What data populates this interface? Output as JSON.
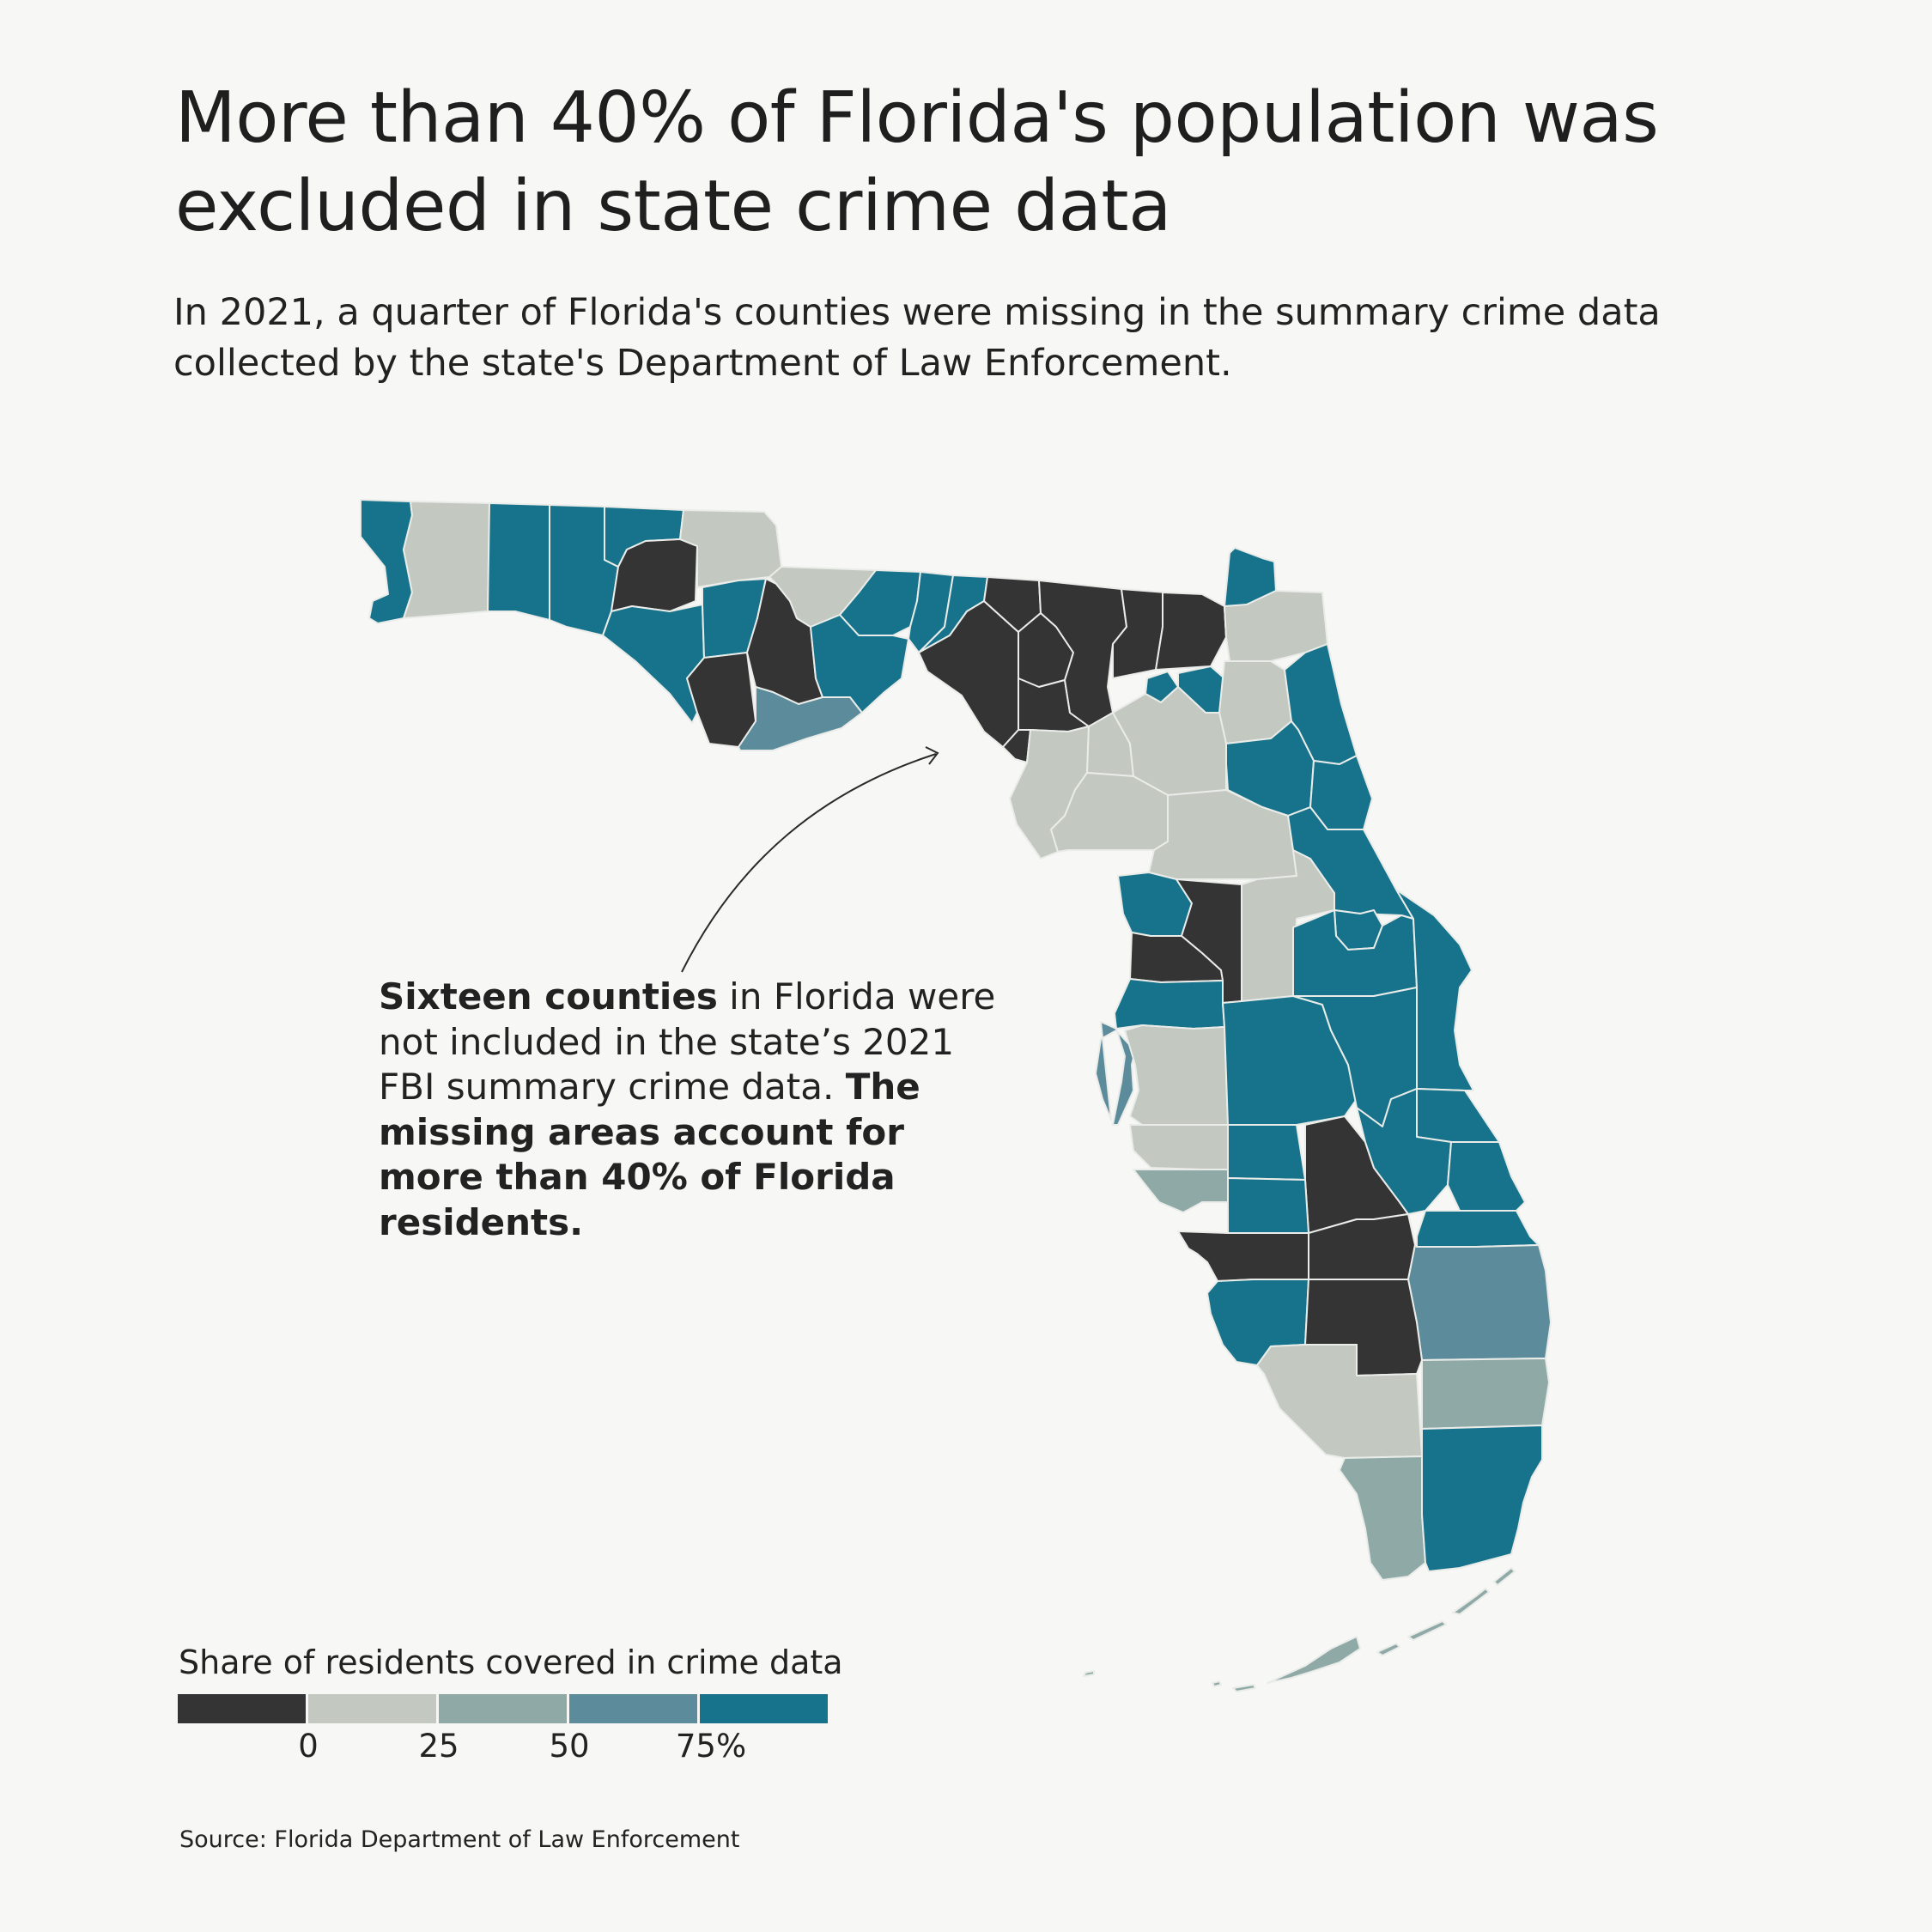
{
  "title": "More than 40% of Florida's population was excluded in state crime data",
  "subtitle": "In 2021, a quarter of Florida's counties were missing in the summary crime data collected by the state's Department of Law Enforcement.",
  "annotation": {
    "bold_lead": "Sixteen counties",
    "text_middle": " in Florida were not included in the state’s 2021 FBI summary crime data. ",
    "bold_end": "The missing areas account for more than 40% of Florida residents."
  },
  "legend": {
    "title": "Share of residents covered in crime data",
    "labels": [
      "0",
      "25",
      "50",
      "75%"
    ],
    "colors": [
      "#353435",
      "#c3c8c0",
      "#8fa9a6",
      "#5c8c9c",
      "#17738b"
    ]
  },
  "map_colors": {
    "missing": "#353435",
    "c0_25": "#c3c8c0",
    "c25_50": "#8fa9a6",
    "c50_75": "#5c8c9c",
    "c75_100": "#17738b",
    "border": "#e9ece8"
  },
  "source": "Source: Florida Department of Law Enforcement"
}
